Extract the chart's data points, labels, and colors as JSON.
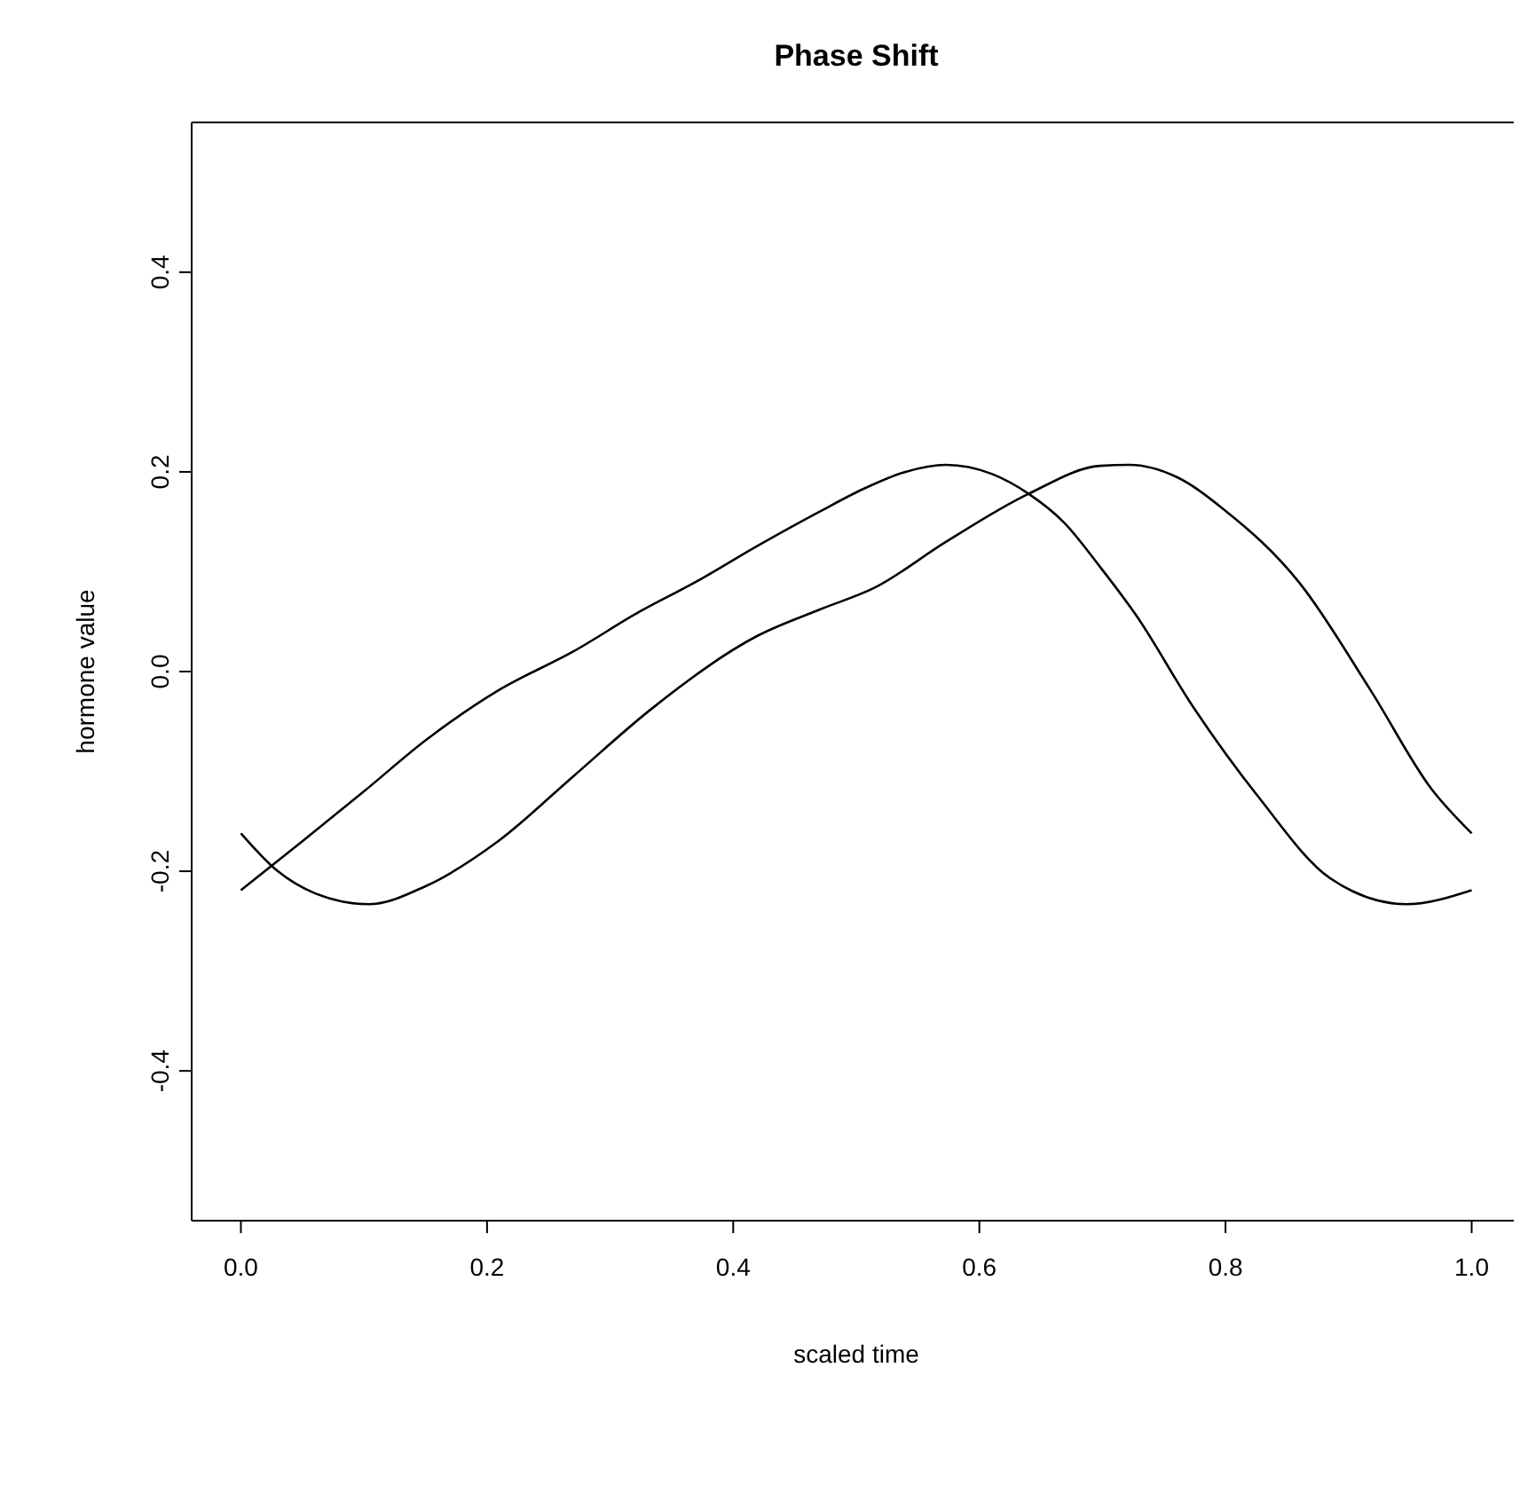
{
  "chart_data": {
    "type": "line",
    "title": "Phase Shift",
    "xlabel": "scaled time",
    "ylabel": "hormone value",
    "xlim": [
      -0.04,
      1.04
    ],
    "ylim": [
      -0.55,
      0.55
    ],
    "xticks": [
      {
        "value": 0,
        "label": "0.0"
      },
      0.2,
      0.4,
      0.6,
      0.8,
      {
        "value": 1,
        "label": "1.0"
      }
    ],
    "yticks": [
      -0.4,
      -0.2,
      {
        "value": 0,
        "label": "0.0"
      },
      0.2,
      0.4
    ],
    "series": [
      {
        "color": "#000000",
        "x": [
          0,
          0.05,
          0.1,
          0.151,
          0.209,
          0.27,
          0.324,
          0.37,
          0.42,
          0.47,
          0.506,
          0.54,
          0.573,
          0.61,
          0.64,
          0.669,
          0.698,
          0.727,
          0.774,
          0.827,
          0.885,
          0.947,
          1.0
        ],
        "values": [
          -0.219,
          -0.17,
          -0.12,
          -0.068,
          -0.019,
          0.02,
          0.06,
          0.09,
          0.126,
          0.16,
          0.183,
          0.2,
          0.207,
          0.198,
          0.178,
          0.149,
          0.105,
          0.057,
          -0.036,
          -0.126,
          -0.207,
          -0.233,
          -0.219
        ]
      },
      {
        "color": "#000000",
        "x": [
          0,
          0.03,
          0.06,
          0.104,
          0.15,
          0.209,
          0.27,
          0.334,
          0.42,
          0.47,
          0.515,
          0.573,
          0.64,
          0.698,
          0.722,
          0.76,
          0.799,
          0.86,
          0.918,
          0.967,
          1.0
        ],
        "values": [
          -0.162,
          -0.2,
          -0.222,
          -0.233,
          -0.215,
          -0.17,
          -0.105,
          -0.037,
          0.036,
          0.062,
          0.084,
          0.13,
          0.178,
          0.206,
          0.207,
          0.195,
          0.162,
          0.089,
          -0.019,
          -0.117,
          -0.162
        ]
      }
    ]
  }
}
